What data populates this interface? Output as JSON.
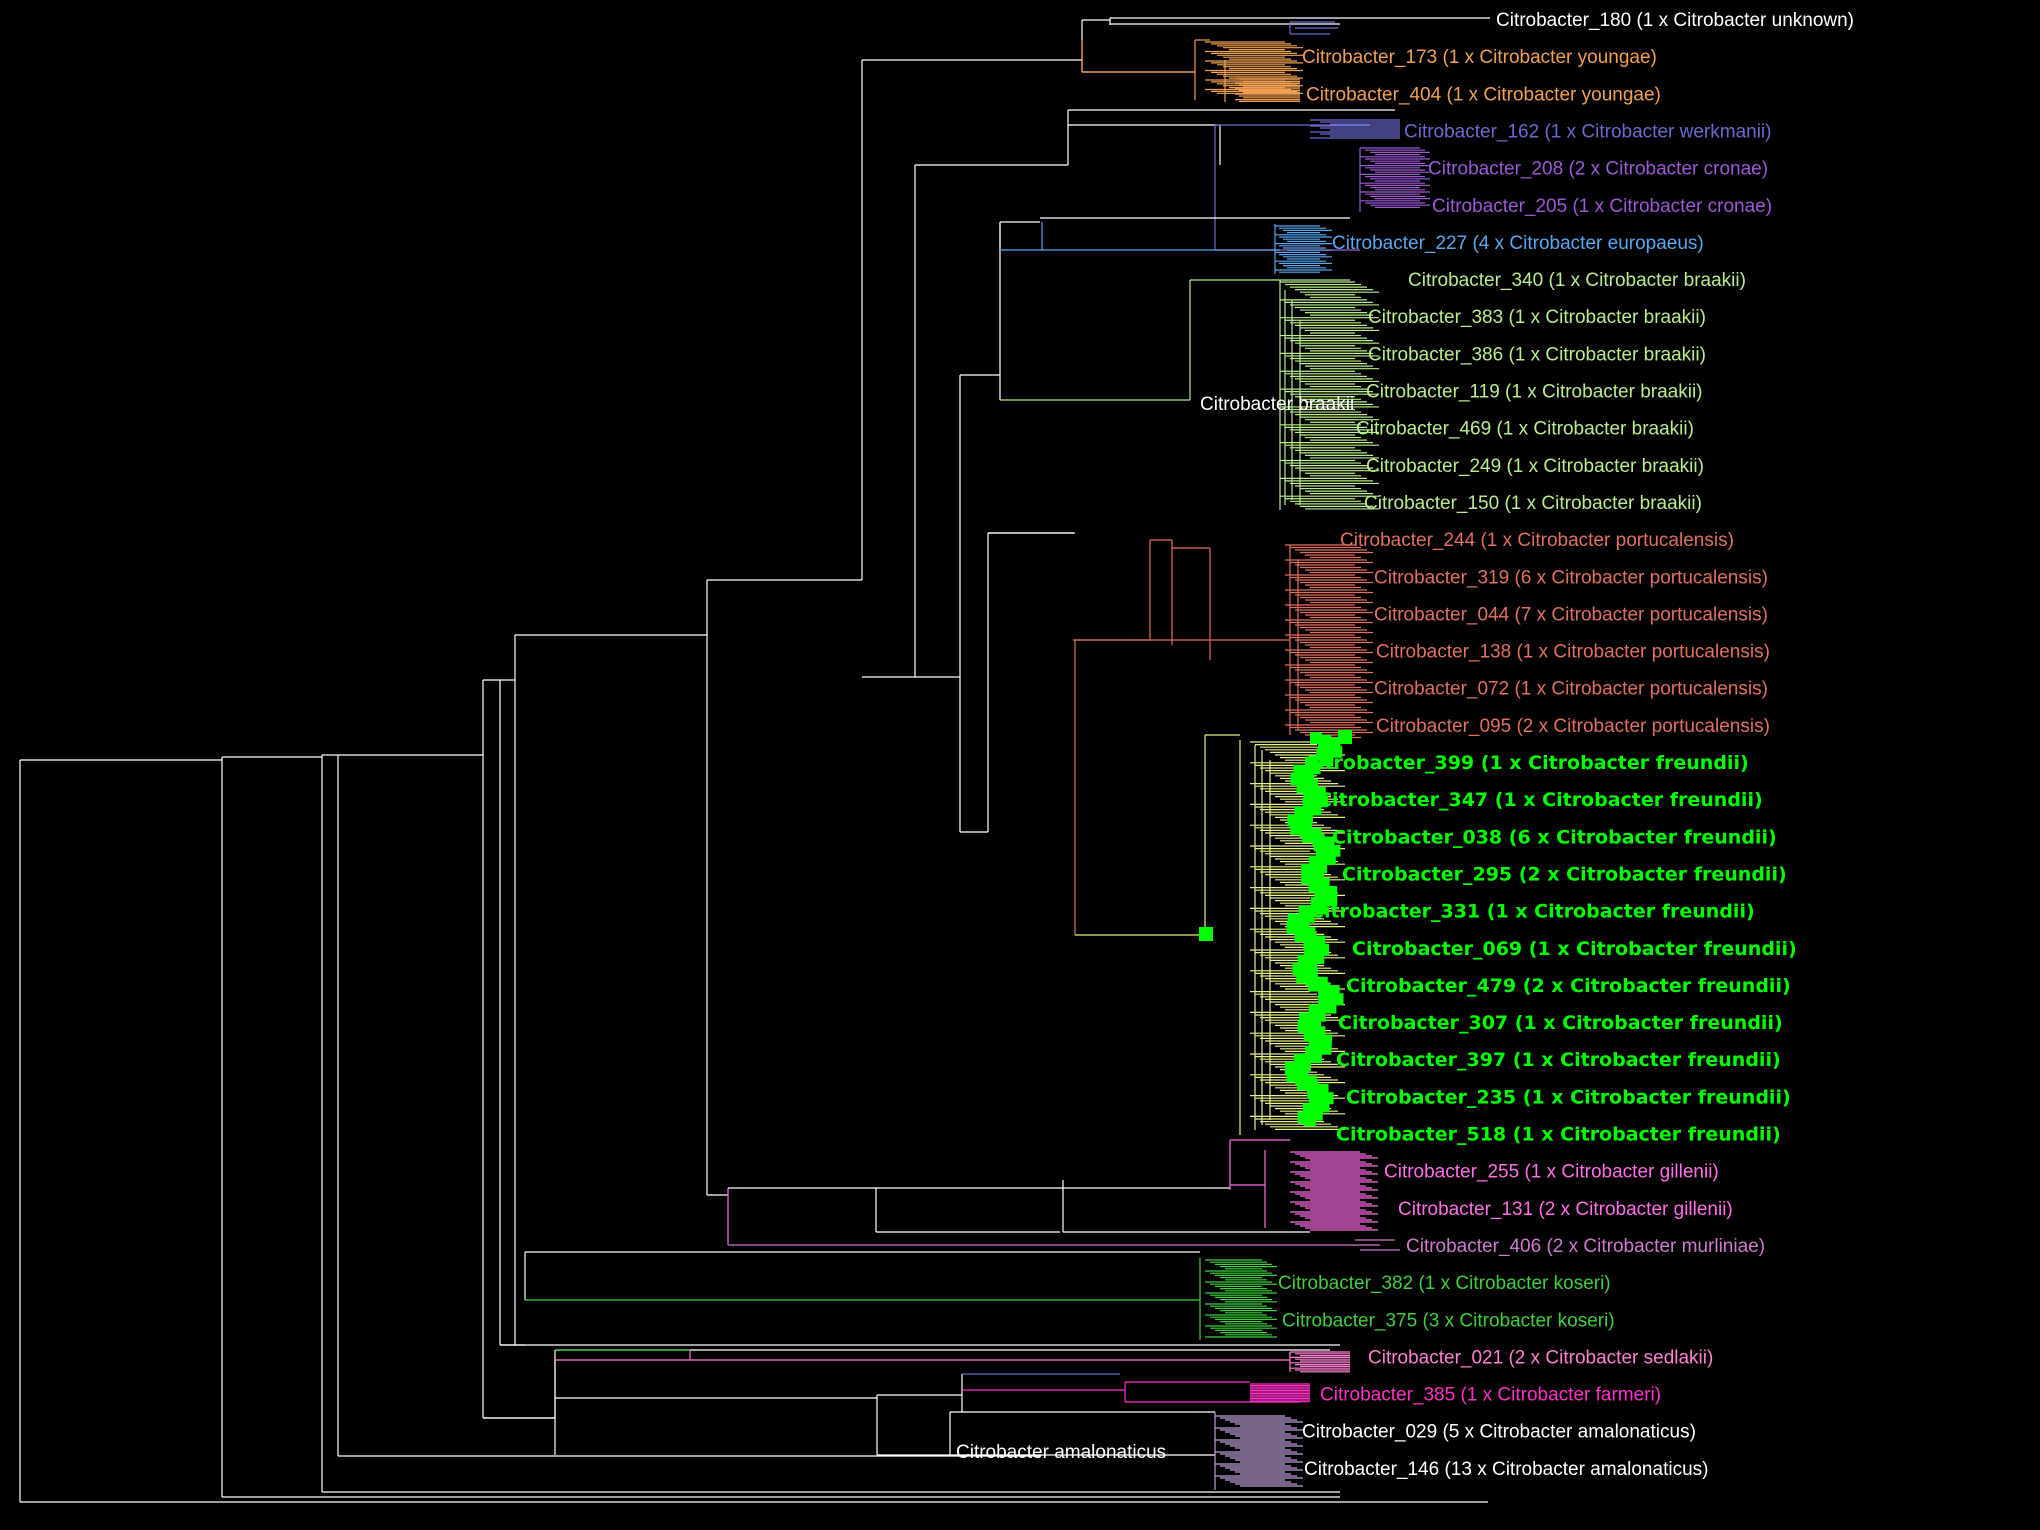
{
  "colors": {
    "background": "#000000",
    "backbone": "#ffffff",
    "unknown": "#ffffff",
    "youngae": "#f0a050",
    "werkmanii": "#6a6acd",
    "cronae": "#9b59d6",
    "europaeus": "#5aa7f0",
    "braakii": "#b8ec8c",
    "portucalensis": "#e07060",
    "freundii": "#00ff00",
    "freundii_branch": "#e8f08a",
    "gillenii": "#ff6ee8",
    "murliniae": "#d07ad0",
    "koseri": "#3ecf3e",
    "sedlakii": "#ff80d0",
    "farmeri": "#ff2fc8",
    "amalonaticus": "#ffffff",
    "amalonaticus_branch": "#c0a0d8"
  },
  "tips": [
    {
      "label": "Citrobacter_180 (1 x Citrobacter unknown)",
      "color_key": "unknown",
      "bold": false
    },
    {
      "label": "Citrobacter_173 (1 x Citrobacter youngae)",
      "color_key": "youngae",
      "bold": false
    },
    {
      "label": "Citrobacter_404 (1 x Citrobacter youngae)",
      "color_key": "youngae",
      "bold": false
    },
    {
      "label": "Citrobacter_162 (1 x Citrobacter werkmanii)",
      "color_key": "werkmanii",
      "bold": false
    },
    {
      "label": "Citrobacter_208 (2 x Citrobacter cronae)",
      "color_key": "cronae",
      "bold": false
    },
    {
      "label": "Citrobacter_205 (1 x Citrobacter cronae)",
      "color_key": "cronae",
      "bold": false
    },
    {
      "label": "Citrobacter_227 (4 x Citrobacter europaeus)",
      "color_key": "europaeus",
      "bold": false
    },
    {
      "label": "Citrobacter_340 (1 x Citrobacter braakii)",
      "color_key": "braakii",
      "bold": false
    },
    {
      "label": "Citrobacter_383 (1 x Citrobacter braakii)",
      "color_key": "braakii",
      "bold": false
    },
    {
      "label": "Citrobacter_386 (1 x Citrobacter braakii)",
      "color_key": "braakii",
      "bold": false
    },
    {
      "label": "Citrobacter_119 (1 x Citrobacter braakii)",
      "color_key": "braakii",
      "bold": false
    },
    {
      "label": "Citrobacter_469 (1 x Citrobacter braakii)",
      "color_key": "braakii",
      "bold": false
    },
    {
      "label": "Citrobacter_249 (1 x Citrobacter braakii)",
      "color_key": "braakii",
      "bold": false
    },
    {
      "label": "Citrobacter_150 (1 x Citrobacter braakii)",
      "color_key": "braakii",
      "bold": false
    },
    {
      "label": "Citrobacter_244 (1 x Citrobacter portucalensis)",
      "color_key": "portucalensis",
      "bold": false
    },
    {
      "label": "Citrobacter_319 (6 x Citrobacter portucalensis)",
      "color_key": "portucalensis",
      "bold": false
    },
    {
      "label": "Citrobacter_044 (7 x Citrobacter portucalensis)",
      "color_key": "portucalensis",
      "bold": false
    },
    {
      "label": "Citrobacter_138 (1 x Citrobacter portucalensis)",
      "color_key": "portucalensis",
      "bold": false
    },
    {
      "label": "Citrobacter_072 (1 x Citrobacter portucalensis)",
      "color_key": "portucalensis",
      "bold": false
    },
    {
      "label": "Citrobacter_095 (2 x Citrobacter portucalensis)",
      "color_key": "portucalensis",
      "bold": false
    },
    {
      "label": "Citrobacter_399 (1 x Citrobacter freundii)",
      "color_key": "freundii",
      "bold": true
    },
    {
      "label": "Citrobacter_347 (1 x Citrobacter freundii)",
      "color_key": "freundii",
      "bold": true
    },
    {
      "label": "Citrobacter_038 (6 x Citrobacter freundii)",
      "color_key": "freundii",
      "bold": true
    },
    {
      "label": "Citrobacter_295 (2 x Citrobacter freundii)",
      "color_key": "freundii",
      "bold": true
    },
    {
      "label": "Citrobacter_331 (1 x Citrobacter freundii)",
      "color_key": "freundii",
      "bold": true
    },
    {
      "label": "Citrobacter_069 (1 x Citrobacter freundii)",
      "color_key": "freundii",
      "bold": true
    },
    {
      "label": "Citrobacter_479 (2 x Citrobacter freundii)",
      "color_key": "freundii",
      "bold": true
    },
    {
      "label": "Citrobacter_307 (1 x Citrobacter freundii)",
      "color_key": "freundii",
      "bold": true
    },
    {
      "label": "Citrobacter_397 (1 x Citrobacter freundii)",
      "color_key": "freundii",
      "bold": true
    },
    {
      "label": "Citrobacter_235 (1 x Citrobacter freundii)",
      "color_key": "freundii",
      "bold": true
    },
    {
      "label": "Citrobacter_518 (1 x Citrobacter freundii)",
      "color_key": "freundii",
      "bold": true
    },
    {
      "label": "Citrobacter_255 (1 x Citrobacter gillenii)",
      "color_key": "gillenii",
      "bold": false
    },
    {
      "label": "Citrobacter_131 (2 x Citrobacter gillenii)",
      "color_key": "gillenii",
      "bold": false
    },
    {
      "label": "Citrobacter_406 (2 x Citrobacter murliniae)",
      "color_key": "murliniae",
      "bold": false
    },
    {
      "label": "Citrobacter_382 (1 x Citrobacter koseri)",
      "color_key": "koseri",
      "bold": false
    },
    {
      "label": "Citrobacter_375 (3 x Citrobacter koseri)",
      "color_key": "koseri",
      "bold": false
    },
    {
      "label": "Citrobacter_021 (2 x Citrobacter sedlakii)",
      "color_key": "sedlakii",
      "bold": false
    },
    {
      "label": "Citrobacter_385 (1 x Citrobacter farmeri)",
      "color_key": "farmeri",
      "bold": false
    },
    {
      "label": "Citrobacter_029 (5 x Citrobacter amalonaticus)",
      "color_key": "amalonaticus",
      "bold": false
    },
    {
      "label": "Citrobacter_146 (13 x Citrobacter amalonaticus)",
      "color_key": "amalonaticus",
      "bold": false
    }
  ],
  "clade_labels": [
    {
      "text": "Citrobacter braakii"
    },
    {
      "text": "Citrobacter amalonaticus"
    }
  ]
}
